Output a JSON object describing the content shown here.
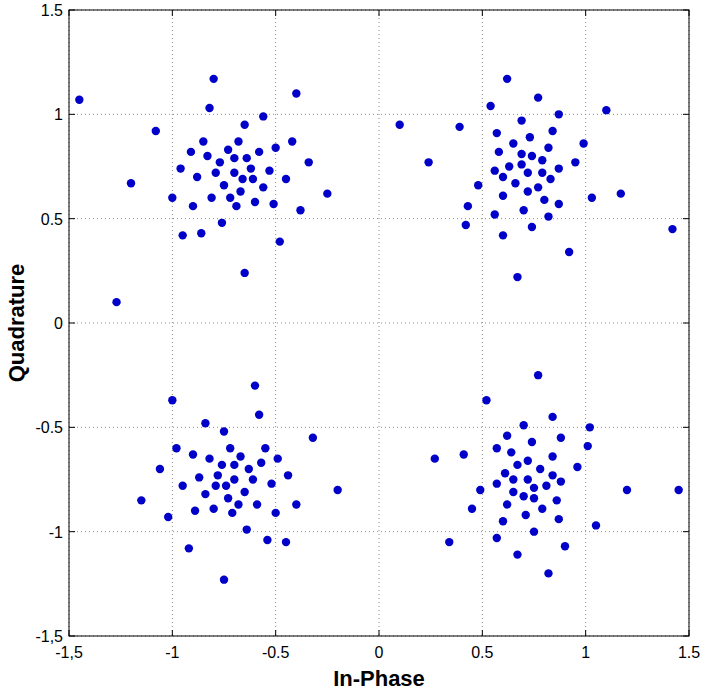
{
  "chart_data": {
    "type": "scatter",
    "xlabel": "In-Phase",
    "ylabel": "Quadrature",
    "color": "#0000c8",
    "marker": "point",
    "grid": true,
    "xlim": [
      -1.5,
      1.5
    ],
    "ylim": [
      -1.5,
      1.5
    ],
    "xticks": [
      {
        "value": -1.5,
        "label": "-1,5"
      },
      -1,
      -0.5,
      0,
      0.5,
      1,
      1.5
    ],
    "yticks": [
      {
        "value": -1.5,
        "label": "-1,5"
      },
      -1,
      -0.5,
      0,
      0.5,
      1,
      1.5
    ],
    "x": [
      -0.7,
      -0.62,
      -0.77,
      -0.67,
      -0.75,
      -0.58,
      -0.83,
      -0.56,
      -0.81,
      -0.68,
      -0.69,
      -0.53,
      -0.88,
      -0.64,
      -0.73,
      -0.6,
      -0.85,
      -0.5,
      -0.91,
      -0.51,
      -0.9,
      -0.65,
      -0.76,
      -0.45,
      -0.96,
      -0.61,
      -0.79,
      -0.7,
      -0.66,
      -0.72,
      -0.42,
      -1.0,
      -0.56,
      -0.86,
      -0.38,
      -0.82,
      -0.34,
      -1.08,
      -0.48,
      -0.95,
      -0.25,
      -0.8,
      -0.65,
      -1.2,
      -0.4,
      0.72,
      0.74,
      0.77,
      0.63,
      0.66,
      0.82,
      0.8,
      0.65,
      0.6,
      0.87,
      0.56,
      0.73,
      0.7,
      0.79,
      0.83,
      0.58,
      0.87,
      0.84,
      0.82,
      0.57,
      0.56,
      0.95,
      0.48,
      0.69,
      0.74,
      0.69,
      0.72,
      0.79,
      0.69,
      0.6,
      0.87,
      0.6,
      0.99,
      0.43,
      0.54,
      1.03,
      0.77,
      0.92,
      0.39,
      0.42,
      0.62,
      1.17,
      0.24,
      0.67,
      1.1,
      -0.7,
      -0.78,
      -0.63,
      -0.73,
      -0.65,
      -0.82,
      -0.57,
      -0.84,
      -0.59,
      -0.72,
      -0.71,
      -0.87,
      -0.52,
      -0.76,
      -0.67,
      -0.8,
      -0.55,
      -0.9,
      -0.49,
      -0.89,
      -0.5,
      -0.75,
      -0.64,
      -0.95,
      -0.44,
      -0.79,
      -0.61,
      -0.7,
      -0.74,
      -0.68,
      -0.98,
      -0.4,
      -0.84,
      -0.54,
      -1.02,
      -0.58,
      -1.06,
      -0.32,
      -0.92,
      -0.45,
      -1.15,
      -0.6,
      -0.75,
      -0.2,
      -1.0,
      0.72,
      0.7,
      0.67,
      0.81,
      0.78,
      0.62,
      0.64,
      0.79,
      0.84,
      0.57,
      0.88,
      0.71,
      0.74,
      0.65,
      0.61,
      0.86,
      0.57,
      0.6,
      0.62,
      0.87,
      0.88,
      0.49,
      0.96,
      0.75,
      0.7,
      0.75,
      0.72,
      0.65,
      0.75,
      0.84,
      0.57,
      0.84,
      0.45,
      1.01,
      0.9,
      0.41,
      0.67,
      0.52,
      1.05,
      1.02,
      0.82,
      0.27,
      1.2,
      0.77,
      0.34,
      0.1,
      1.42,
      -1.27,
      1.45,
      -1.45
    ],
    "values": [
      0.72,
      0.74,
      0.77,
      0.63,
      0.66,
      0.82,
      0.8,
      0.65,
      0.6,
      0.87,
      0.56,
      0.73,
      0.7,
      0.79,
      0.83,
      0.58,
      0.87,
      0.84,
      0.82,
      0.57,
      0.56,
      0.95,
      0.48,
      0.69,
      0.74,
      0.69,
      0.72,
      0.79,
      0.69,
      0.6,
      0.87,
      0.6,
      0.99,
      0.43,
      0.54,
      1.03,
      0.77,
      0.92,
      0.39,
      0.42,
      0.62,
      1.17,
      0.24,
      0.67,
      1.1,
      0.72,
      0.8,
      0.65,
      0.75,
      0.67,
      0.84,
      0.59,
      0.86,
      0.61,
      0.74,
      0.73,
      0.89,
      0.54,
      0.78,
      0.69,
      0.82,
      0.57,
      0.92,
      0.51,
      0.91,
      0.52,
      0.77,
      0.66,
      0.97,
      0.46,
      0.81,
      0.63,
      0.72,
      0.76,
      0.7,
      1.0,
      0.42,
      0.86,
      0.56,
      1.04,
      0.6,
      1.08,
      0.34,
      0.94,
      0.47,
      1.17,
      0.62,
      0.77,
      0.22,
      1.02,
      -0.75,
      -0.73,
      -0.7,
      -0.84,
      -0.81,
      -0.65,
      -0.67,
      -0.82,
      -0.87,
      -0.6,
      -0.91,
      -0.74,
      -0.77,
      -0.68,
      -0.64,
      -0.89,
      -0.6,
      -0.63,
      -0.65,
      -0.9,
      -0.91,
      -0.52,
      -0.99,
      -0.78,
      -0.73,
      -0.78,
      -0.75,
      -0.68,
      -0.78,
      -0.87,
      -0.6,
      -0.87,
      -0.48,
      -1.04,
      -0.93,
      -0.44,
      -0.7,
      -0.55,
      -1.08,
      -1.05,
      -0.85,
      -0.3,
      -1.23,
      -0.8,
      -0.37,
      -0.75,
      -0.83,
      -0.68,
      -0.78,
      -0.7,
      -0.87,
      -0.62,
      -0.89,
      -0.64,
      -0.77,
      -0.76,
      -0.92,
      -0.57,
      -0.81,
      -0.72,
      -0.85,
      -0.6,
      -0.95,
      -0.54,
      -0.94,
      -0.55,
      -0.8,
      -0.69,
      -1.0,
      -0.49,
      -0.84,
      -0.66,
      -0.75,
      -0.79,
      -0.73,
      -1.03,
      -0.45,
      -0.89,
      -0.59,
      -1.07,
      -0.63,
      -1.11,
      -0.37,
      -0.97,
      -0.5,
      -1.2,
      -0.65,
      -0.8,
      -0.25,
      -1.05,
      0.95,
      0.45,
      0.1,
      -0.8,
      1.07
    ]
  }
}
